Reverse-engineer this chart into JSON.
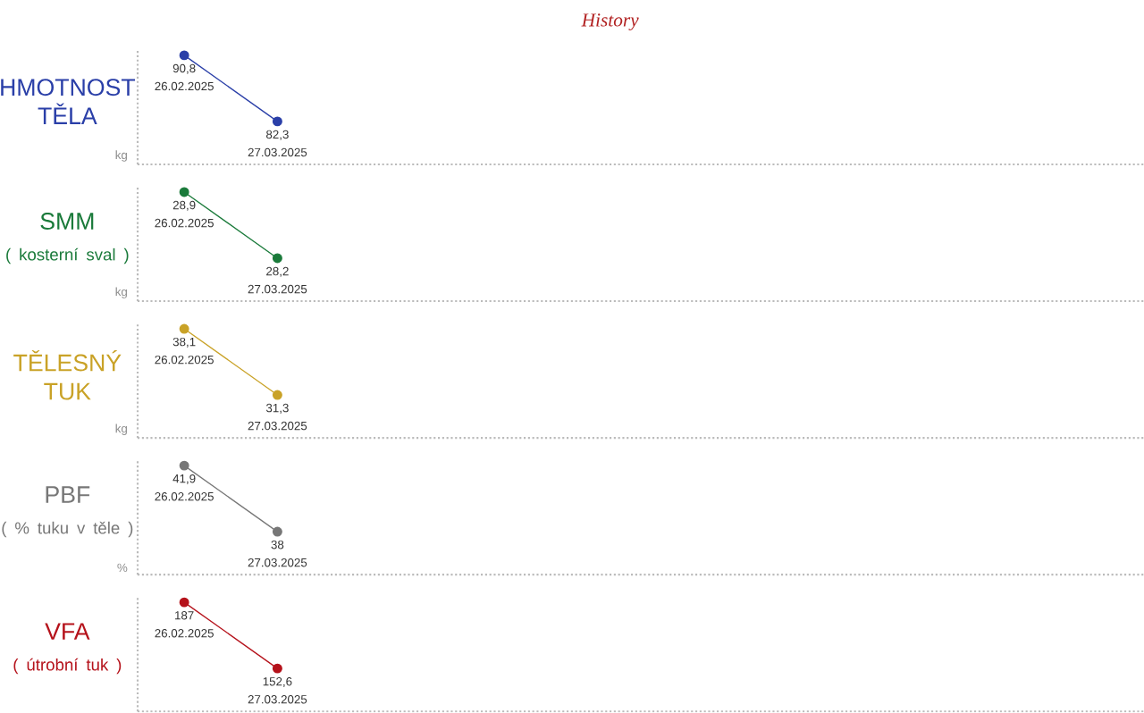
{
  "chart_data": [
    {
      "type": "line",
      "title": "HMOTNOST TĚLA",
      "ylabel": "kg",
      "annotations": [
        "History"
      ],
      "categories": [
        "26.02.2025",
        "27.03.2025"
      ],
      "marker": "circle",
      "line_style": "solid",
      "series": [
        {
          "color": "#2a3fa8",
          "values": [
            90.8,
            82.3
          ],
          "value_labels": [
            "90,8",
            "82,3"
          ]
        }
      ]
    },
    {
      "type": "line",
      "title": "SMM",
      "subtitle": "( kosterní sval )",
      "ylabel": "kg",
      "categories": [
        "26.02.2025",
        "27.03.2025"
      ],
      "marker": "circle",
      "line_style": "solid",
      "series": [
        {
          "color": "#1a7a3a",
          "values": [
            28.9,
            28.2
          ],
          "value_labels": [
            "28,9",
            "28,2"
          ]
        }
      ]
    },
    {
      "type": "line",
      "title": "TĚLESNÝ TUK",
      "ylabel": "kg",
      "categories": [
        "26.02.2025",
        "27.03.2025"
      ],
      "marker": "circle",
      "line_style": "solid",
      "series": [
        {
          "color": "#c9a227",
          "values": [
            38.1,
            31.3
          ],
          "value_labels": [
            "38,1",
            "31,3"
          ]
        }
      ]
    },
    {
      "type": "line",
      "title": "PBF",
      "subtitle": "( % tuku v těle )",
      "ylabel": "%",
      "categories": [
        "26.02.2025",
        "27.03.2025"
      ],
      "marker": "circle",
      "line_style": "solid",
      "series": [
        {
          "color": "#777777",
          "values": [
            41.9,
            38
          ],
          "value_labels": [
            "41,9",
            "38"
          ]
        }
      ]
    },
    {
      "type": "line",
      "title": "VFA",
      "subtitle": "( útrobní tuk )",
      "categories": [
        "26.02.2025",
        "27.03.2025"
      ],
      "marker": "circle",
      "line_style": "solid",
      "series": [
        {
          "color": "#b5121b",
          "values": [
            187,
            152.6
          ],
          "value_labels": [
            "187",
            "152,6"
          ]
        }
      ]
    }
  ]
}
